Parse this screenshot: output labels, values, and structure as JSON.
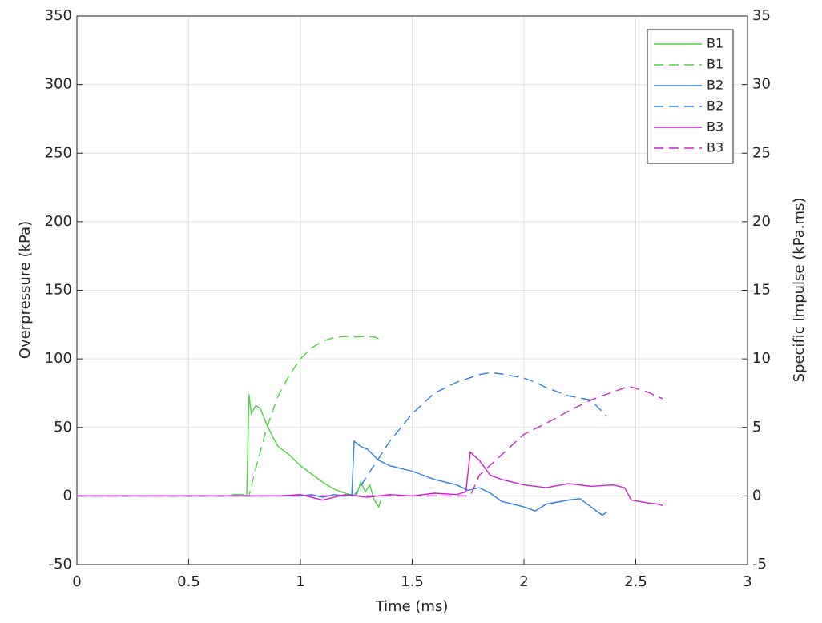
{
  "chart_data": {
    "type": "line",
    "xlabel": "Time (ms)",
    "ylabel": "Overpressure (kPa)",
    "y2label": "Specific Impulse (kPa.ms)",
    "xlim": [
      0,
      3
    ],
    "xticks": [
      0,
      0.5,
      1,
      1.5,
      2,
      2.5,
      3
    ],
    "ylim": [
      -50,
      350
    ],
    "yticks": [
      -50,
      0,
      50,
      100,
      150,
      200,
      250,
      300,
      350
    ],
    "y2lim": [
      -5,
      35
    ],
    "y2ticks": [
      -5,
      0,
      5,
      10,
      15,
      20,
      25,
      30,
      35
    ],
    "grid": true,
    "legend": "upper right",
    "series": [
      {
        "name": "B1",
        "color": "#4cd43c",
        "line_style": "solid",
        "x": [
          0,
          0.68,
          0.7,
          0.74,
          0.76,
          0.77,
          0.78,
          0.8,
          0.82,
          0.85,
          0.88,
          0.9,
          0.95,
          1.0,
          1.05,
          1.1,
          1.15,
          1.2,
          1.25,
          1.27,
          1.29,
          1.31,
          1.33,
          1.35,
          1.36
        ],
        "values": [
          0,
          0,
          1,
          1,
          0,
          74,
          60,
          66,
          64,
          52,
          42,
          36,
          30,
          22,
          16,
          10,
          5,
          2,
          0,
          10,
          3,
          8,
          -3,
          -8,
          -3
        ]
      },
      {
        "name": "B1",
        "color": "#4cd43c",
        "line_style": "dashed",
        "axis": "y2",
        "x": [
          0,
          0.77,
          0.8,
          0.85,
          0.9,
          0.95,
          1.0,
          1.05,
          1.1,
          1.15,
          1.2,
          1.25,
          1.3,
          1.33,
          1.36
        ],
        "values": [
          0,
          0,
          2,
          5,
          7.3,
          8.8,
          10,
          10.8,
          11.3,
          11.55,
          11.65,
          11.6,
          11.65,
          11.6,
          11.4
        ]
      },
      {
        "name": "B2",
        "color": "#2f7fe8",
        "line_style": "solid",
        "x": [
          0,
          1.0,
          1.05,
          1.1,
          1.15,
          1.2,
          1.23,
          1.24,
          1.27,
          1.3,
          1.35,
          1.4,
          1.5,
          1.6,
          1.7,
          1.75,
          1.8,
          1.85,
          1.9,
          2.0,
          2.05,
          2.1,
          2.2,
          2.25,
          2.3,
          2.35,
          2.37
        ],
        "values": [
          0,
          0,
          1,
          -1,
          1,
          0,
          1,
          40,
          36,
          34,
          26,
          22,
          18,
          12,
          8,
          4,
          6,
          2,
          -4,
          -8,
          -11,
          -6,
          -3,
          -2,
          -8,
          -14,
          -12
        ]
      },
      {
        "name": "B2",
        "color": "#2f7fe8",
        "line_style": "dashed",
        "axis": "y2",
        "x": [
          0,
          1.24,
          1.3,
          1.4,
          1.5,
          1.6,
          1.7,
          1.8,
          1.85,
          1.9,
          2.0,
          2.05,
          2.1,
          2.2,
          2.3,
          2.37
        ],
        "values": [
          0,
          0,
          1.5,
          4,
          6,
          7.5,
          8.3,
          8.85,
          9.0,
          8.9,
          8.6,
          8.3,
          7.9,
          7.3,
          7.0,
          5.8
        ]
      },
      {
        "name": "B3",
        "color": "#cc22cc",
        "line_style": "solid",
        "x": [
          0,
          0.9,
          1.0,
          1.1,
          1.2,
          1.3,
          1.4,
          1.5,
          1.6,
          1.7,
          1.74,
          1.76,
          1.8,
          1.85,
          1.9,
          2.0,
          2.1,
          2.2,
          2.3,
          2.4,
          2.45,
          2.48,
          2.55,
          2.6,
          2.62
        ],
        "values": [
          0,
          0,
          1,
          -3,
          1,
          -1,
          1,
          0,
          2,
          1,
          3,
          32,
          26,
          15,
          12,
          8,
          6,
          9,
          7,
          8,
          6,
          -3,
          -5,
          -6,
          -7
        ]
      },
      {
        "name": "B3",
        "color": "#cc22cc",
        "line_style": "dashed",
        "axis": "y2",
        "x": [
          0,
          1.76,
          1.8,
          1.9,
          2.0,
          2.1,
          2.2,
          2.3,
          2.4,
          2.47,
          2.55,
          2.62
        ],
        "values": [
          0,
          0,
          1.5,
          3,
          4.5,
          5.3,
          6.2,
          7.0,
          7.6,
          8.0,
          7.6,
          7.1
        ]
      }
    ]
  }
}
